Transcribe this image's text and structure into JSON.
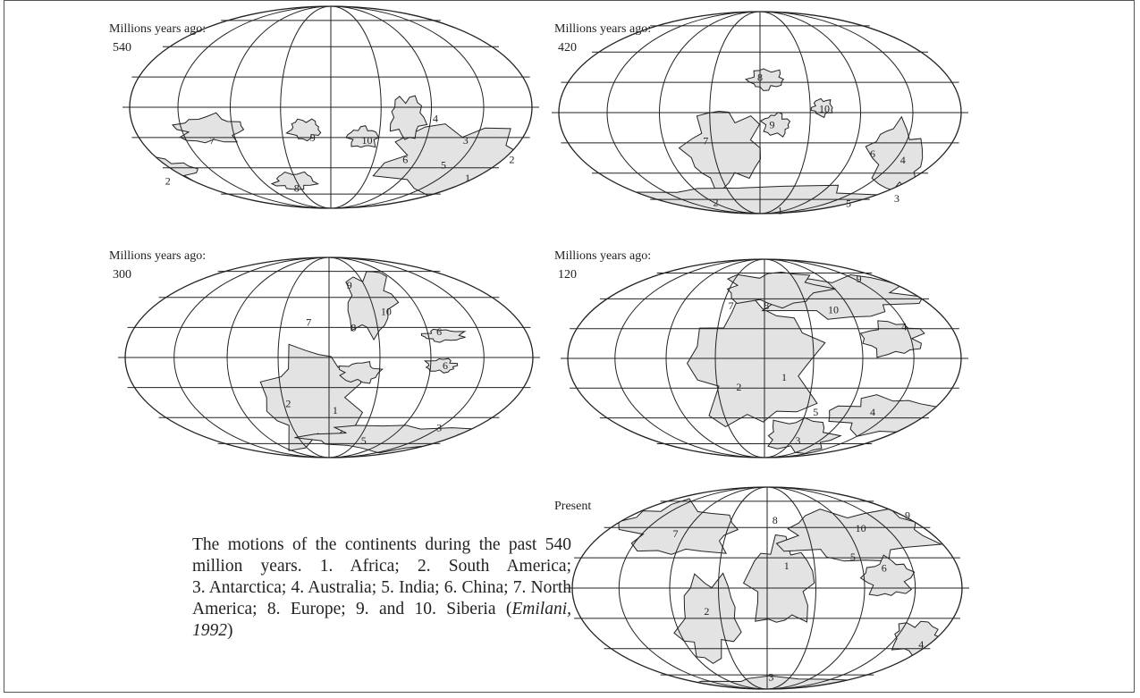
{
  "maps": [
    {
      "heading": "Millions years ago:",
      "age": "540",
      "labels": [
        "7",
        "9",
        "10",
        "4",
        "3",
        "6",
        "5",
        "2",
        "1",
        "2",
        "8"
      ]
    },
    {
      "heading": "Millions years ago:",
      "age": "420",
      "labels": [
        "8",
        "10",
        "9",
        "7",
        "6",
        "4",
        "2",
        "5",
        "3",
        "1"
      ]
    },
    {
      "heading": "Millions years ago:",
      "age": "300",
      "labels": [
        "9",
        "10",
        "7",
        "8",
        "6",
        "6",
        "2",
        "1",
        "5",
        "3"
      ]
    },
    {
      "heading": "Millions years ago:",
      "age": "120",
      "labels": [
        "9",
        "7",
        "8",
        "10",
        "4",
        "1",
        "2",
        "5",
        "4",
        "3"
      ]
    },
    {
      "heading": "Present",
      "labels": [
        "9",
        "8",
        "10",
        "7",
        "5",
        "1",
        "6",
        "2",
        "4",
        "3"
      ]
    }
  ],
  "caption": {
    "lines": [
      "The motions of the continents during the past 540",
      "million years. 1. Africa; 2. South America;",
      "3. Antarctica; 4. Australia; 5. India; 6. China; 7. North"
    ],
    "last_line": {
      "text": "America; 8. Europe; 9. and 10. Siberia (",
      "citation": "Emilani, 1992",
      "close": ")"
    }
  }
}
